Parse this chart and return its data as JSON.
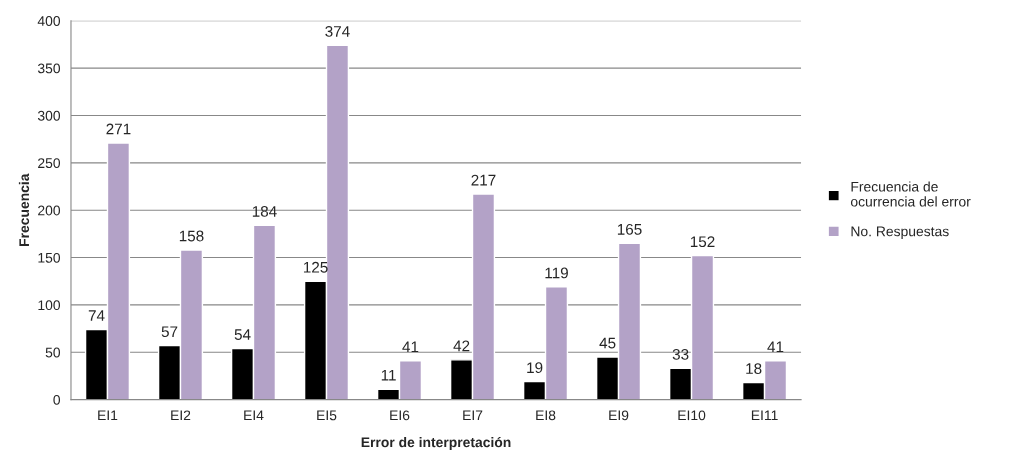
{
  "chart_data": {
    "type": "bar",
    "xlabel": "Error de interpretación",
    "ylabel": "Frecuencia",
    "categories": [
      "EI1",
      "EI2",
      "EI4",
      "EI5",
      "EI6",
      "EI7",
      "EI8",
      "EI9",
      "EI10",
      "EI11"
    ],
    "series": [
      {
        "name": "Frecuencia de ocurrencia del error",
        "color": "#000000",
        "values": [
          74,
          57,
          54,
          125,
          11,
          42,
          19,
          45,
          33,
          18
        ]
      },
      {
        "name": "No. Respuestas",
        "color": "#b3a2c7",
        "values": [
          271,
          158,
          184,
          374,
          41,
          217,
          119,
          165,
          152,
          41
        ]
      }
    ],
    "ylim": [
      0,
      400
    ],
    "yticks": [
      0,
      50,
      100,
      150,
      200,
      250,
      300,
      350,
      400
    ],
    "grid": "y",
    "legend": "right",
    "data_labels": true
  }
}
